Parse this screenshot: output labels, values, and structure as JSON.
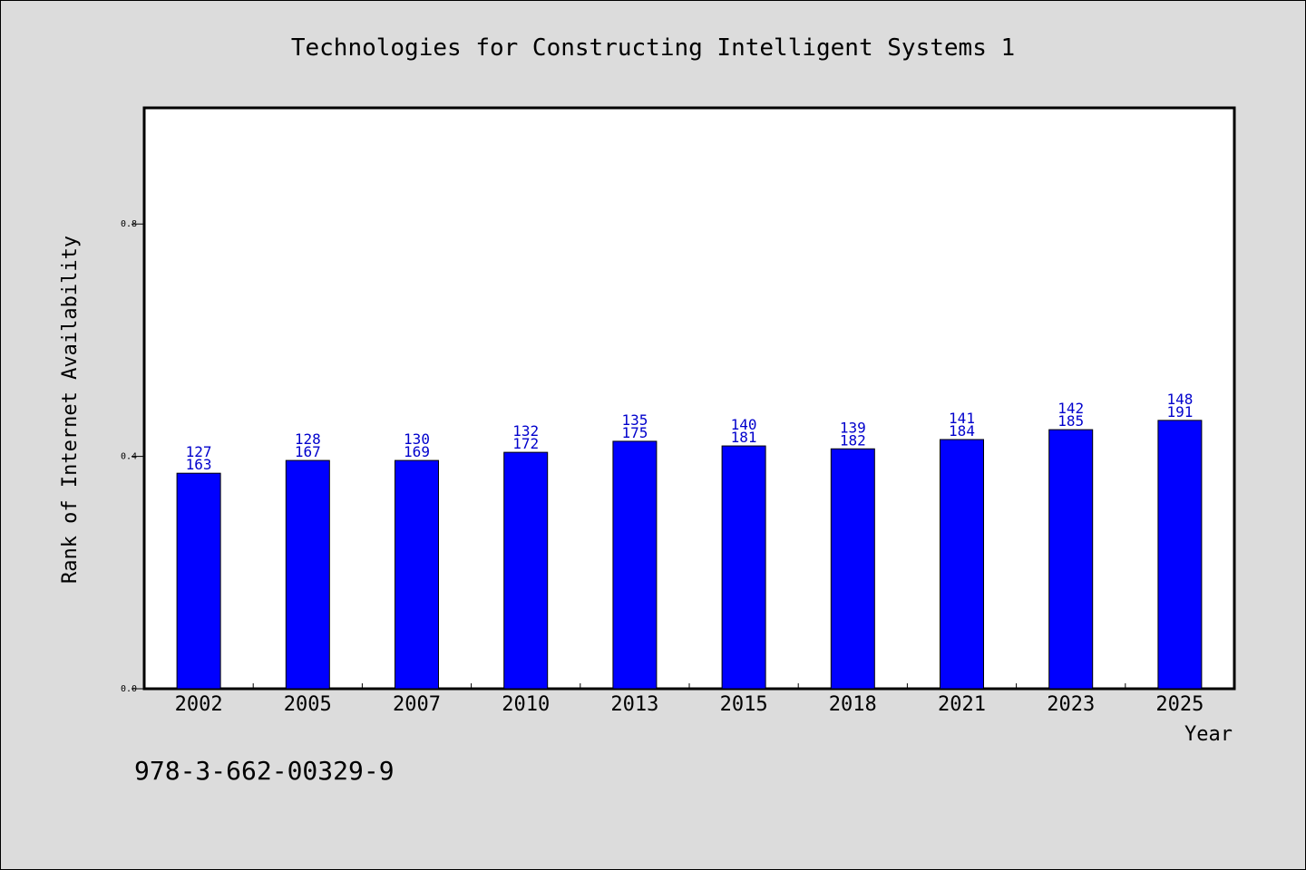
{
  "chart_data": {
    "type": "bar",
    "title": "Technologies for Constructing Intelligent Systems 1",
    "xlabel": "Year",
    "ylabel": "Rank of Internet Availability",
    "categories": [
      "2002",
      "2005",
      "2007",
      "2010",
      "2013",
      "2015",
      "2018",
      "2021",
      "2023",
      "2025"
    ],
    "values": [
      0.371,
      0.393,
      0.393,
      0.407,
      0.426,
      0.418,
      0.413,
      0.429,
      0.446,
      0.462
    ],
    "label_top": [
      "127",
      "128",
      "130",
      "132",
      "135",
      "140",
      "139",
      "141",
      "142",
      "148"
    ],
    "label_bottom": [
      "163",
      "167",
      "169",
      "172",
      "175",
      "181",
      "182",
      "184",
      "185",
      "191"
    ],
    "yticks": [
      "0.0",
      "0.4",
      "0.8"
    ],
    "ylim": [
      0,
      1.0
    ],
    "grid": false,
    "bar_color": "#0000ff",
    "label_color": "#0000cc"
  },
  "footer": {
    "isbn": "978-3-662-00329-9"
  }
}
